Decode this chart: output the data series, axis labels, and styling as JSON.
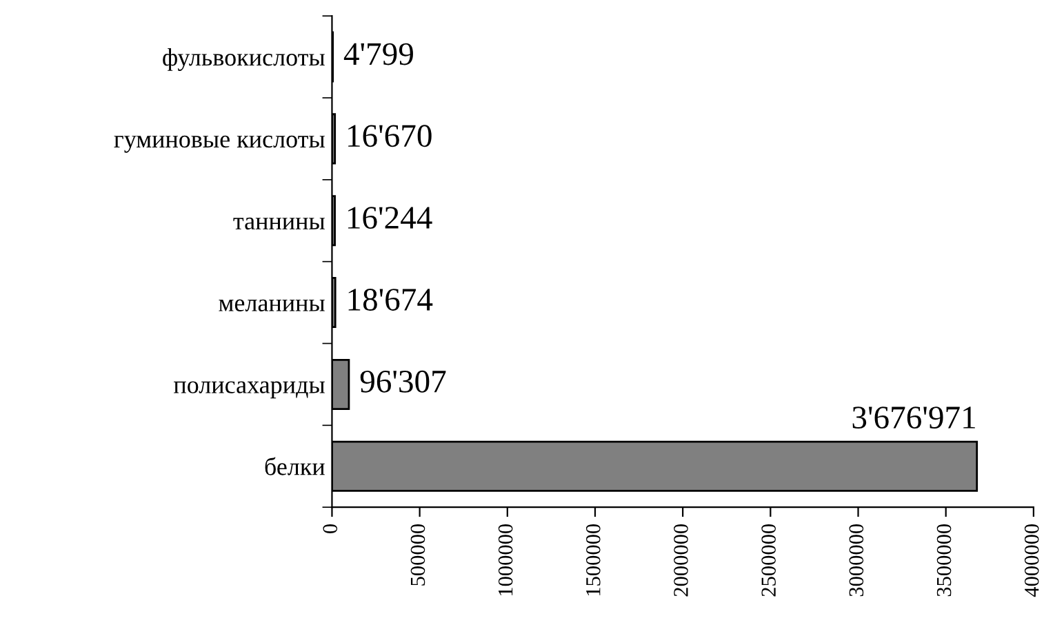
{
  "chart_data": {
    "type": "bar",
    "orientation": "horizontal",
    "categories": [
      "фульвокислоты",
      "гуминовые кислоты",
      "таннины",
      "меланины",
      "полисахариды",
      "белки"
    ],
    "values": [
      4799,
      16670,
      16244,
      18674,
      96307,
      3676971
    ],
    "value_labels": [
      "4'799",
      "16'670",
      "16'244",
      "18'674",
      "96'307",
      "3'676'971"
    ],
    "color": "#808080",
    "xlim": [
      0,
      4000000
    ],
    "xticks": [
      0,
      500000,
      1000000,
      1500000,
      2000000,
      2500000,
      3000000,
      3500000,
      4000000
    ],
    "grid": false,
    "legend": false
  }
}
